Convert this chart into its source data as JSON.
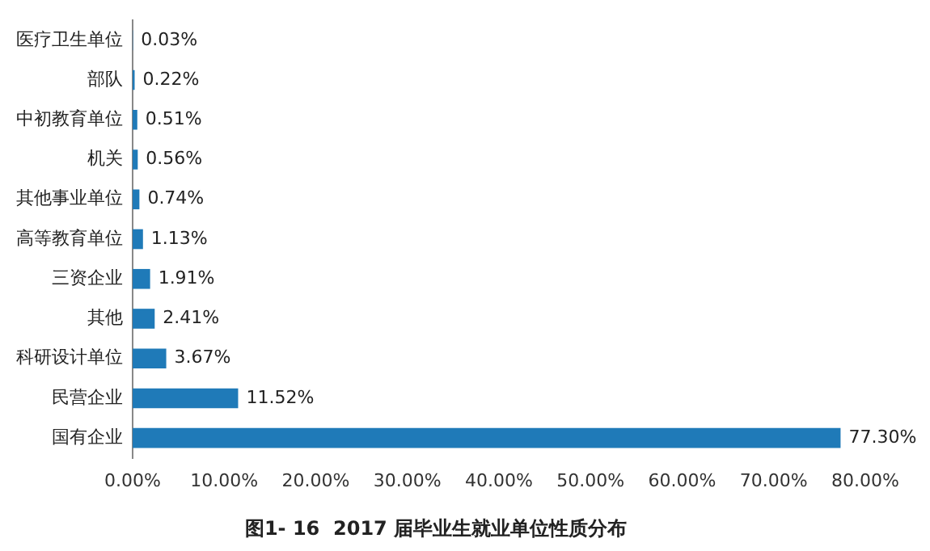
{
  "chart_data": {
    "type": "bar",
    "orientation": "horizontal",
    "title": "图1- 16  2017 届毕业生就业单位性质分布",
    "categories": [
      "医疗卫生单位",
      "部队",
      "中初教育单位",
      "机关",
      "其他事业单位",
      "高等教育单位",
      "三资企业",
      "其他",
      "科研设计单位",
      "民营企业",
      "国有企业"
    ],
    "values": [
      0.03,
      0.22,
      0.51,
      0.56,
      0.74,
      1.13,
      1.91,
      2.41,
      3.67,
      11.52,
      77.3
    ],
    "value_labels": [
      "0.03%",
      "0.22%",
      "0.51%",
      "0.56%",
      "0.74%",
      "1.13%",
      "1.91%",
      "2.41%",
      "3.67%",
      "11.52%",
      "77.30%"
    ],
    "color": "#1f7ab8",
    "xlim": [
      0,
      80
    ],
    "xticks": [
      {
        "value": 0,
        "label": "0.00%"
      },
      {
        "value": 10,
        "label": "10.00%"
      },
      {
        "value": 20,
        "label": "20.00%"
      },
      {
        "value": 30,
        "label": "30.00%"
      },
      {
        "value": 40,
        "label": "40.00%"
      },
      {
        "value": 50,
        "label": "50.00%"
      },
      {
        "value": 60,
        "label": "60.00%"
      },
      {
        "value": 70,
        "label": "70.00%"
      },
      {
        "value": 80,
        "label": "80.00%"
      }
    ],
    "grid": false,
    "legend": false
  }
}
